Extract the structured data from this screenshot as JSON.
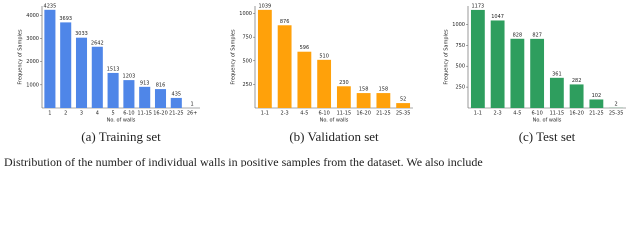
{
  "chart_data": [
    {
      "type": "bar",
      "caption": "(a) Training set",
      "x_label": "No. of walls",
      "y_label": "Frequency of Samples",
      "color": "#4f86e8",
      "categories": [
        "1",
        "2",
        "3",
        "4",
        "5",
        "6-10",
        "11-15",
        "16-20",
        "21-25",
        "26+"
      ],
      "values": [
        4235,
        3693,
        3033,
        2642,
        1513,
        1203,
        913,
        816,
        435,
        1
      ],
      "ylim": [
        0,
        4400
      ],
      "yticks": [
        1000,
        2000,
        3000,
        4000
      ]
    },
    {
      "type": "bar",
      "caption": "(b) Validation set",
      "x_label": "No. of walls",
      "y_label": "Frequency of Samples",
      "color": "#ffa10a",
      "categories": [
        "1-1",
        "2-3",
        "4-5",
        "6-10",
        "11-15",
        "16-20",
        "21-25",
        "25-35"
      ],
      "values": [
        1039,
        876,
        596,
        510,
        230,
        158,
        158,
        52
      ],
      "ylim": [
        0,
        1080
      ],
      "yticks": [
        250,
        500,
        750,
        1000
      ]
    },
    {
      "type": "bar",
      "caption": "(c) Test set",
      "x_label": "No. of walls",
      "y_label": "Frequency of Samples",
      "color": "#2e9e5e",
      "categories": [
        "1-1",
        "2-3",
        "4-5",
        "6-10",
        "11-15",
        "16-20",
        "21-25",
        "25-35"
      ],
      "values": [
        1173,
        1047,
        828,
        827,
        361,
        282,
        102,
        2
      ],
      "ylim": [
        0,
        1220
      ],
      "yticks": [
        250,
        500,
        750,
        1000
      ]
    }
  ],
  "footer": "Distribution of the number of individual walls in positive samples from the dataset. We also include"
}
